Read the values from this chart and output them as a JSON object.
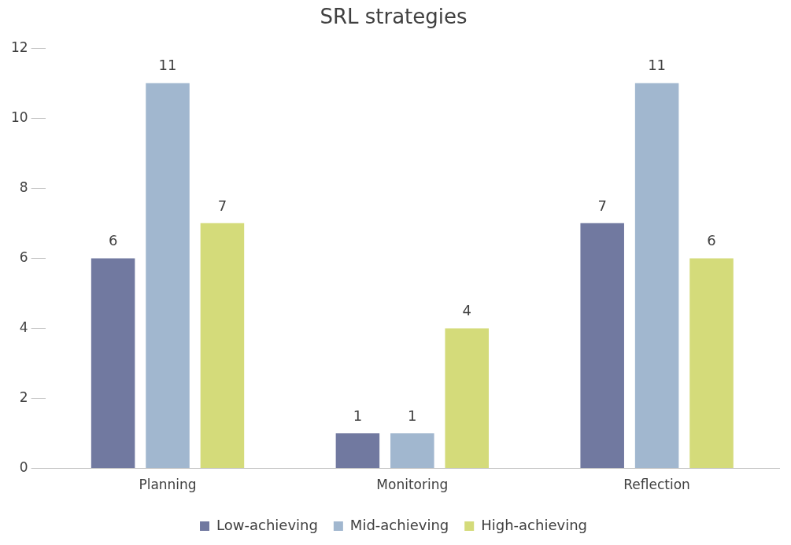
{
  "chart_data": {
    "type": "bar",
    "title": "SRL strategies",
    "categories": [
      "Planning",
      "Monitoring",
      "Reflection"
    ],
    "series": [
      {
        "name": "Low-achieving",
        "color": "#7179a0",
        "values": [
          6,
          1,
          7
        ]
      },
      {
        "name": "Mid-achieving",
        "color": "#a1b7cf",
        "values": [
          11,
          1,
          11
        ]
      },
      {
        "name": "High-achieving",
        "color": "#d4db7a",
        "values": [
          7,
          4,
          6
        ]
      }
    ],
    "ylim": [
      0,
      12
    ],
    "yticks": [
      0,
      2,
      4,
      6,
      8,
      10,
      12
    ],
    "grid": false,
    "legend": "bottom",
    "data_labels": true
  }
}
